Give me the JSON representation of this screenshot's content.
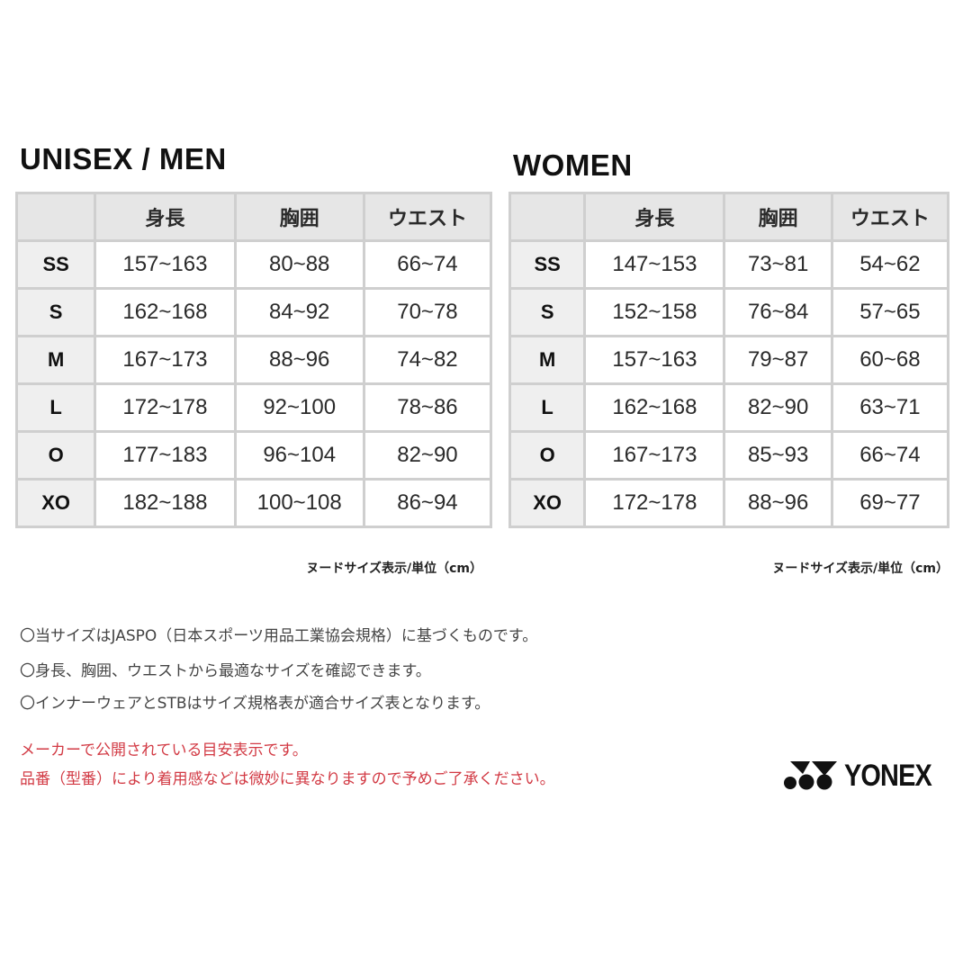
{
  "men": {
    "title": "UNISEX / MEN",
    "headers": [
      "",
      "身長",
      "胸囲",
      "ウエスト"
    ],
    "rows": [
      [
        "SS",
        "157~163",
        "80~88",
        "66~74"
      ],
      [
        "S",
        "162~168",
        "84~92",
        "70~78"
      ],
      [
        "M",
        "167~173",
        "88~96",
        "74~82"
      ],
      [
        "L",
        "172~178",
        "92~100",
        "78~86"
      ],
      [
        "O",
        "177~183",
        "96~104",
        "82~90"
      ],
      [
        "XO",
        "182~188",
        "100~108",
        "86~94"
      ]
    ],
    "unit_note": "ヌードサイズ表示/単位（cm）"
  },
  "women": {
    "title": "WOMEN",
    "headers": [
      "",
      "身長",
      "胸囲",
      "ウエスト"
    ],
    "rows": [
      [
        "SS",
        "147~153",
        "73~81",
        "54~62"
      ],
      [
        "S",
        "152~158",
        "76~84",
        "57~65"
      ],
      [
        "M",
        "157~163",
        "79~87",
        "60~68"
      ],
      [
        "L",
        "162~168",
        "82~90",
        "63~71"
      ],
      [
        "O",
        "167~173",
        "85~93",
        "66~74"
      ],
      [
        "XO",
        "172~178",
        "88~96",
        "69~77"
      ]
    ],
    "unit_note": "ヌードサイズ表示/単位（cm）"
  },
  "notes": [
    "〇当サイズはJASPO（日本スポーツ用品工業協会規格）に基づくものです。",
    "〇身長、胸囲、ウエストから最適なサイズを確認できます。",
    "〇インナーウェアとSTBはサイズ規格表が適合サイズ表となります。"
  ],
  "warnings": [
    "メーカーで公開されている目安表示です。",
    "品番（型番）により着用感などは微妙に異なりますので予めご了承ください。"
  ],
  "logo": {
    "text": "YONEX",
    "icon": "yonex-logo-mark"
  },
  "colors": {
    "warning": "#d23a44",
    "header_bg": "#e6e6e6",
    "border": "#cfcfcf"
  }
}
